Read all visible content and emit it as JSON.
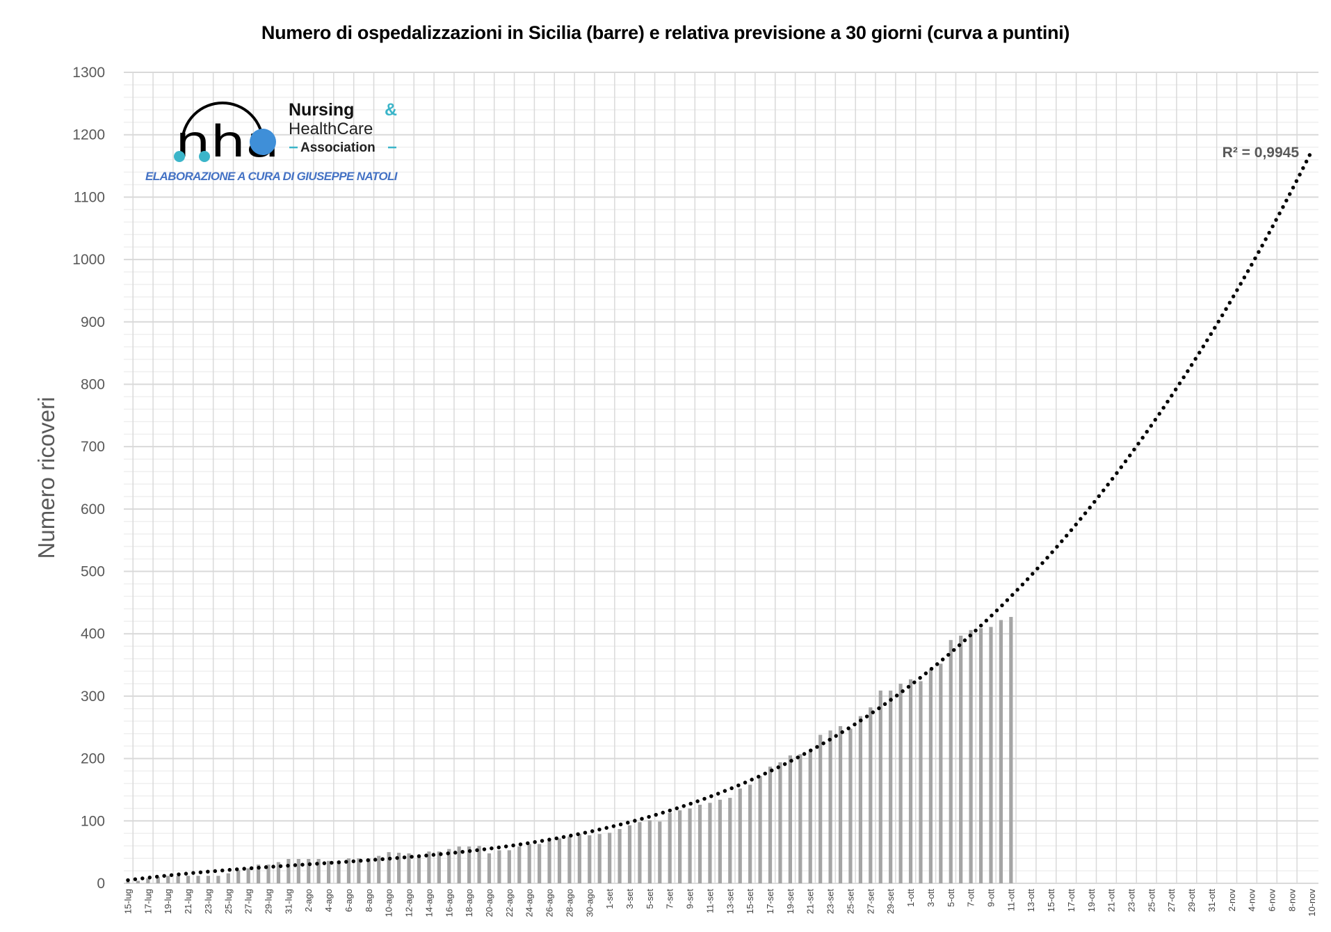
{
  "chart_data": {
    "type": "bar",
    "title": "Numero di ospedalizzazioni in Sicilia (barre) e relativa previsione a 30 giorni (curva a puntini)",
    "xlabel": "",
    "ylabel": "Numero ricoveri",
    "ylim": [
      0,
      1300
    ],
    "y_ticks": [
      0,
      100,
      200,
      300,
      400,
      500,
      600,
      700,
      800,
      900,
      1000,
      1100,
      1200,
      1300
    ],
    "grid": true,
    "total_days": 119,
    "x_tick_labels": [
      "15-lug",
      "17-lug",
      "19-lug",
      "21-lug",
      "23-lug",
      "25-lug",
      "27-lug",
      "29-lug",
      "31-lug",
      "2-ago",
      "4-ago",
      "6-ago",
      "8-ago",
      "10-ago",
      "12-ago",
      "14-ago",
      "16-ago",
      "18-ago",
      "20-ago",
      "22-ago",
      "24-ago",
      "26-ago",
      "28-ago",
      "30-ago",
      "1-set",
      "3-set",
      "5-set",
      "7-set",
      "9-set",
      "11-set",
      "13-set",
      "15-set",
      "17-set",
      "19-set",
      "21-set",
      "23-set",
      "25-set",
      "27-set",
      "29-set",
      "1-ott",
      "3-ott",
      "5-ott",
      "7-ott",
      "9-ott",
      "11-ott",
      "13-ott",
      "15-ott",
      "17-ott",
      "19-ott",
      "21-ott",
      "23-ott",
      "25-ott",
      "27-ott",
      "29-ott",
      "31-ott",
      "2-nov",
      "4-nov",
      "6-nov",
      "8-nov",
      "10-nov"
    ],
    "series": [
      {
        "name": "Ospedalizzazioni",
        "type": "bar",
        "color": "#A5A5A5",
        "start": "15-lug",
        "values": [
          2,
          4,
          8,
          10,
          12,
          12,
          12,
          12,
          12,
          12,
          16,
          21,
          24,
          30,
          30,
          34,
          39,
          39,
          39,
          39,
          36,
          36,
          40,
          40,
          40,
          44,
          50,
          49,
          48,
          44,
          51,
          51,
          55,
          59,
          59,
          60,
          48,
          53,
          53,
          59,
          63,
          63,
          68,
          72,
          75,
          79,
          77,
          79,
          81,
          87,
          93,
          98,
          101,
          99,
          113,
          117,
          120,
          126,
          129,
          134,
          137,
          152,
          158,
          172,
          187,
          194,
          205,
          207,
          211,
          238,
          245,
          252,
          248,
          268,
          282,
          309,
          309,
          320,
          327,
          324,
          343,
          352,
          390,
          397,
          406,
          409,
          411,
          422,
          427
        ]
      },
      {
        "name": "Previsione",
        "type": "trendline",
        "model": "polynomial",
        "order": 3,
        "color": "#000000",
        "coefficients": [
          5,
          2.1068,
          -0.05717,
          0.0010453
        ],
        "r2_label": "R² = 0,9945"
      }
    ]
  },
  "logo": {
    "letters": "nha",
    "line1": "Nursing",
    "amp": "&",
    "line2": "HealthCare",
    "line3": "Association",
    "accent": "#3BB5C9",
    "blue": "#3F8FD8"
  },
  "credit": "ELABORAZIONE A CURA DI GIUSEPPE NATOLI"
}
